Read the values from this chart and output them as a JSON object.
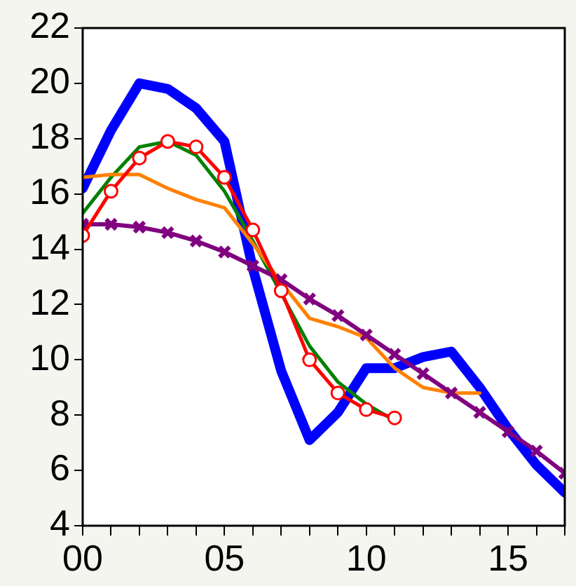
{
  "chart_data": {
    "type": "line",
    "x": [
      0,
      1,
      2,
      3,
      4,
      5,
      6,
      7,
      8,
      9,
      10,
      11,
      12,
      13,
      14,
      15,
      16,
      17
    ],
    "xlim": [
      0,
      17
    ],
    "xticks": [
      {
        "value": 0,
        "label": "00"
      },
      {
        "value": 1,
        "label": null
      },
      {
        "value": 2,
        "label": null
      },
      {
        "value": 3,
        "label": null
      },
      {
        "value": 4,
        "label": null
      },
      {
        "value": 5,
        "label": "05"
      },
      {
        "value": 6,
        "label": null
      },
      {
        "value": 7,
        "label": null
      },
      {
        "value": 8,
        "label": null
      },
      {
        "value": 9,
        "label": null
      },
      {
        "value": 10,
        "label": "10"
      },
      {
        "value": 11,
        "label": null
      },
      {
        "value": 12,
        "label": null
      },
      {
        "value": 13,
        "label": null
      },
      {
        "value": 14,
        "label": null
      },
      {
        "value": 15,
        "label": "15"
      },
      {
        "value": 16,
        "label": null
      },
      {
        "value": 17,
        "label": null
      }
    ],
    "ylim": [
      4,
      22
    ],
    "yticks": [
      4,
      6,
      8,
      10,
      12,
      14,
      16,
      18,
      20,
      22
    ],
    "grid": false,
    "legend": false,
    "line_style": "solid",
    "series": [
      {
        "color": "#0000ff",
        "marker": "none",
        "values": [
          16.2,
          18.3,
          20.0,
          19.8,
          19.1,
          17.9,
          13.3,
          9.6,
          7.1,
          8.1,
          9.7,
          9.7,
          10.1,
          10.3,
          9.0,
          7.5,
          6.2,
          5.2
        ]
      },
      {
        "color": "#ff0000",
        "marker": "circle",
        "values": [
          14.5,
          16.1,
          17.3,
          17.9,
          17.7,
          16.6,
          14.7,
          12.5,
          10.0,
          8.8,
          8.2,
          7.9,
          null,
          null,
          null,
          null,
          null,
          null
        ]
      },
      {
        "color": "#008000",
        "marker": "none",
        "values": [
          15.3,
          16.6,
          17.7,
          17.9,
          17.4,
          16.1,
          14.3,
          12.4,
          10.5,
          9.2,
          8.4,
          7.8,
          null,
          null,
          null,
          null,
          null,
          null
        ]
      },
      {
        "color": "#ff8000",
        "marker": "none",
        "values": [
          16.6,
          16.7,
          16.7,
          16.2,
          15.8,
          15.5,
          14.2,
          12.8,
          11.5,
          11.2,
          10.8,
          9.7,
          9.0,
          8.8,
          8.8,
          null,
          null,
          null
        ]
      },
      {
        "color": "#800080",
        "marker": "cross",
        "values": [
          14.9,
          14.9,
          14.8,
          14.6,
          14.3,
          13.9,
          13.4,
          12.9,
          12.2,
          11.6,
          10.9,
          10.2,
          9.5,
          8.8,
          8.1,
          7.4,
          6.7,
          5.9
        ]
      }
    ]
  }
}
